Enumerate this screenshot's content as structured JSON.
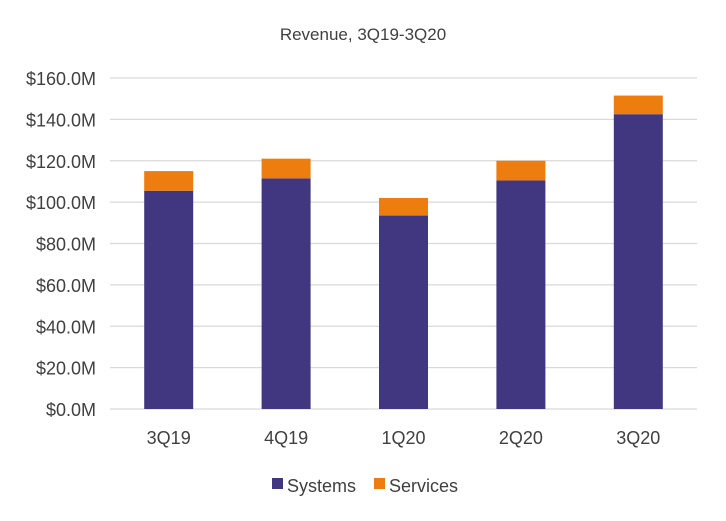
{
  "chart_data": {
    "type": "bar",
    "stacked": true,
    "title": "Revenue, 3Q19-3Q20",
    "categories": [
      "3Q19",
      "4Q19",
      "1Q20",
      "2Q20",
      "3Q20"
    ],
    "series": [
      {
        "name": "Systems",
        "color": "#413780",
        "values": [
          105.5,
          111.5,
          93.5,
          110.5,
          142.5
        ]
      },
      {
        "name": "Services",
        "color": "#ed7d0e",
        "values": [
          9.5,
          9.5,
          8.5,
          9.5,
          9.0
        ]
      }
    ],
    "yticks": [
      0,
      20,
      40,
      60,
      80,
      100,
      120,
      140,
      160
    ],
    "ytick_labels": [
      "$0.0M",
      "$20.0M",
      "$40.0M",
      "$60.0M",
      "$80.0M",
      "$100.0M",
      "$120.0M",
      "$140.0M",
      "$160.0M"
    ],
    "ylim": [
      0,
      160
    ],
    "grid": true,
    "xlabel": "",
    "ylabel": "",
    "legend": "bottom"
  }
}
